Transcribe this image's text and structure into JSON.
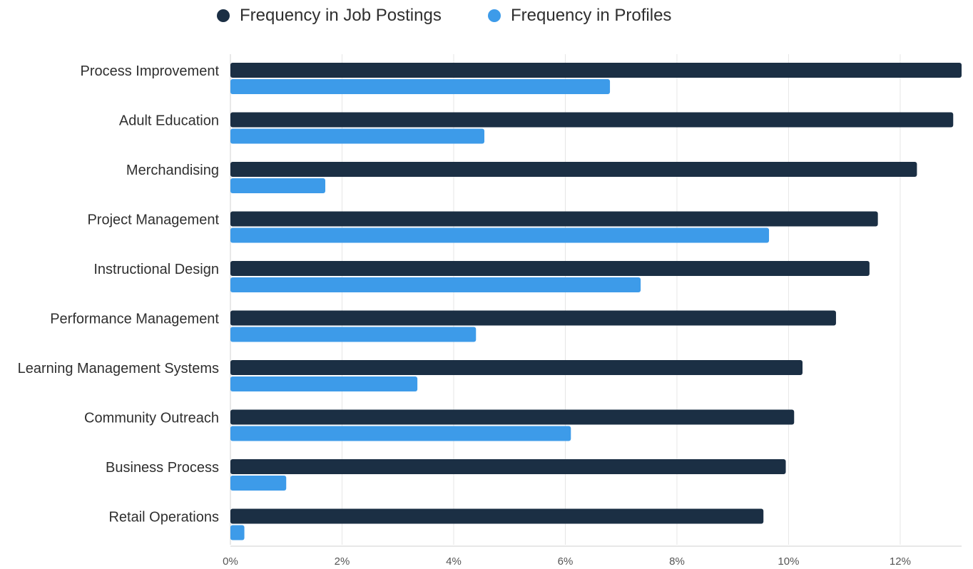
{
  "chart_data": {
    "type": "bar",
    "orientation": "horizontal",
    "title": "",
    "xlabel": "",
    "ylabel": "",
    "categories": [
      "Process Improvement",
      "Adult Education",
      "Merchandising",
      "Project Management",
      "Instructional Design",
      "Performance Management",
      "Learning Management Systems",
      "Community Outreach",
      "Business Process",
      "Retail Operations"
    ],
    "series": [
      {
        "name": "Frequency in Job Postings",
        "color": "#1b2f44",
        "values": [
          13.1,
          12.95,
          12.3,
          11.6,
          11.45,
          10.85,
          10.25,
          10.1,
          9.95,
          9.55
        ]
      },
      {
        "name": "Frequency in Profiles",
        "color": "#3d9be9",
        "values": [
          6.8,
          4.55,
          1.7,
          9.65,
          7.35,
          4.4,
          3.35,
          6.1,
          1.0,
          0.25
        ]
      }
    ],
    "xlim": [
      0,
      13.1
    ],
    "xticks": [
      0,
      2,
      4,
      6,
      8,
      10,
      12
    ],
    "xtick_labels": [
      "0%",
      "2%",
      "4%",
      "6%",
      "8%",
      "10%",
      "12%"
    ],
    "grid": true,
    "legend_position": "top-center"
  }
}
